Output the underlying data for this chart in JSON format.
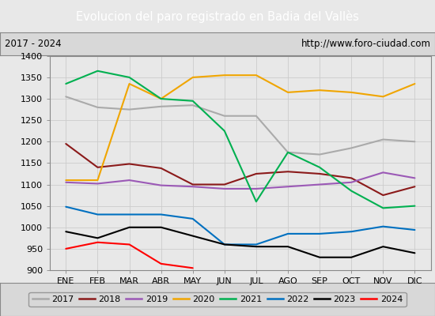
{
  "title": "Evolucion del paro registrado en Badia del Vallès",
  "subtitle_left": "2017 - 2024",
  "subtitle_right": "http://www.foro-ciudad.com",
  "title_bg_color": "#5b9bd5",
  "title_text_color": "white",
  "xlabel_months": [
    "ENE",
    "FEB",
    "MAR",
    "ABR",
    "MAY",
    "JUN",
    "JUL",
    "AGO",
    "SEP",
    "OCT",
    "NOV",
    "DIC"
  ],
  "ylim": [
    900,
    1400
  ],
  "yticks": [
    900,
    950,
    1000,
    1050,
    1100,
    1150,
    1200,
    1250,
    1300,
    1350,
    1400
  ],
  "series": {
    "2017": {
      "color": "#aaaaaa",
      "data": [
        1305,
        1280,
        1275,
        1282,
        1285,
        1260,
        1260,
        1175,
        1170,
        1185,
        1205,
        1200
      ]
    },
    "2018": {
      "color": "#8b1a1a",
      "data": [
        1195,
        1140,
        1148,
        1138,
        1100,
        1100,
        1125,
        1130,
        1125,
        1115,
        1075,
        1095
      ]
    },
    "2019": {
      "color": "#9b59b6",
      "data": [
        1105,
        1102,
        1110,
        1098,
        1095,
        1090,
        1090,
        1095,
        1100,
        1105,
        1128,
        1115
      ]
    },
    "2020": {
      "color": "#f0a500",
      "data": [
        1110,
        1110,
        1335,
        1300,
        1350,
        1355,
        1355,
        1315,
        1320,
        1315,
        1305,
        1335
      ]
    },
    "2021": {
      "color": "#00b050",
      "data": [
        1335,
        1365,
        1350,
        1300,
        1295,
        1225,
        1060,
        1175,
        1140,
        1085,
        1045,
        1050
      ]
    },
    "2022": {
      "color": "#0070c0",
      "data": [
        1048,
        1030,
        1030,
        1030,
        1020,
        960,
        960,
        985,
        985,
        990,
        1002,
        994
      ]
    },
    "2023": {
      "color": "#000000",
      "data": [
        990,
        975,
        1000,
        1000,
        980,
        960,
        955,
        955,
        930,
        930,
        955,
        940
      ]
    },
    "2024": {
      "color": "#ff0000",
      "data": [
        950,
        965,
        960,
        915,
        905,
        null,
        null,
        null,
        null,
        null,
        null,
        null
      ]
    }
  },
  "background_color": "#e8e8e8",
  "plot_bg_color": "#e8e8e8",
  "grid_color": "#cccccc",
  "fig_width": 5.5,
  "fig_height": 4.0,
  "dpi": 100
}
